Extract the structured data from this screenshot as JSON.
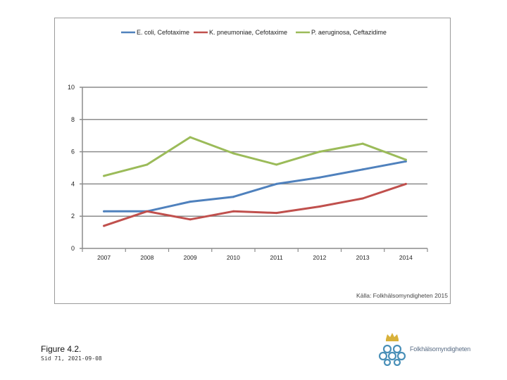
{
  "figure": {
    "label": "Figure 4.2.",
    "slide_meta": "Sid 71, 2021-09-08"
  },
  "logo": {
    "text": "Folkhälsomyndigheten",
    "colors": {
      "crown": "#d8b13a",
      "pattern": "#4a90b8"
    }
  },
  "chart_data": {
    "type": "line",
    "title": "",
    "xlabel": "",
    "ylabel": "",
    "categories": [
      "2007",
      "2008",
      "2009",
      "2010",
      "2011",
      "2012",
      "2013",
      "2014"
    ],
    "ylim": [
      0,
      10
    ],
    "yticks": [
      "0",
      "2",
      "4",
      "6",
      "8",
      "10"
    ],
    "grid": true,
    "legend_position": "top",
    "source_note": "Källa: Folkhälsomyndigheten 2015",
    "series": [
      {
        "name": "E. coli, Cefotaxime",
        "color": "#4f81bd",
        "values": [
          2.3,
          2.3,
          2.9,
          3.2,
          4.0,
          4.4,
          4.9,
          5.4
        ]
      },
      {
        "name": "K. pneumoniae, Cefotaxime",
        "color": "#c0504d",
        "values": [
          1.4,
          2.3,
          1.8,
          2.3,
          2.2,
          2.6,
          3.1,
          4.0
        ]
      },
      {
        "name": "P. aeruginosa, Ceftazidime",
        "color": "#9bbb59",
        "values": [
          4.5,
          5.2,
          6.9,
          5.9,
          5.2,
          6.0,
          6.5,
          5.5
        ]
      }
    ]
  }
}
